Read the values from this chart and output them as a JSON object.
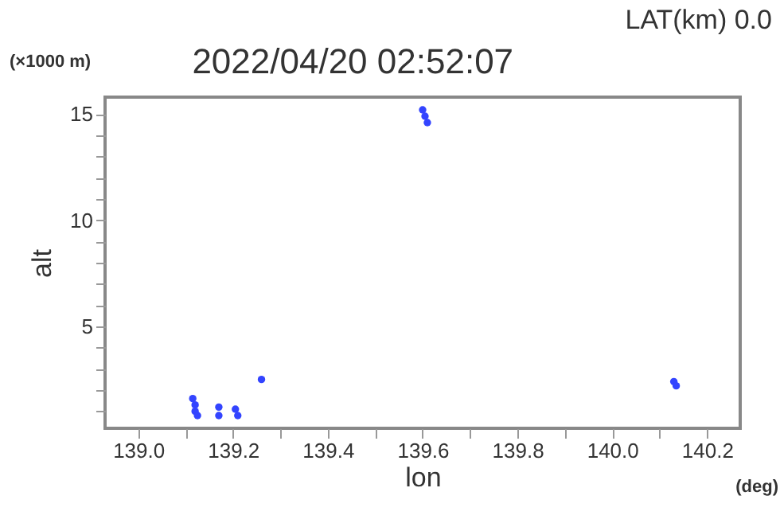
{
  "chart_data": {
    "type": "scatter",
    "title": "2022/04/20 02:52:07",
    "annotations": [
      "LAT(km) 0.0",
      "(×1000 m)",
      "(deg)"
    ],
    "xlabel": "lon",
    "ylabel": "alt",
    "xlim": [
      138.93,
      140.27
    ],
    "ylim": [
      0.2,
      15.8
    ],
    "xticks": [
      {
        "value": 139.0,
        "label": "139.0"
      },
      {
        "value": 139.1,
        "label": null
      },
      {
        "value": 139.2,
        "label": "139.2"
      },
      {
        "value": 139.3,
        "label": null
      },
      {
        "value": 139.4,
        "label": "139.4"
      },
      {
        "value": 139.5,
        "label": null
      },
      {
        "value": 139.6,
        "label": "139.6"
      },
      {
        "value": 139.7,
        "label": null
      },
      {
        "value": 139.8,
        "label": "139.8"
      },
      {
        "value": 139.9,
        "label": null
      },
      {
        "value": 140.0,
        "label": "140.0"
      },
      {
        "value": 140.1,
        "label": null
      },
      {
        "value": 140.2,
        "label": "140.2"
      }
    ],
    "yticks": [
      {
        "value": 1,
        "label": null
      },
      {
        "value": 2,
        "label": null
      },
      {
        "value": 3,
        "label": null
      },
      {
        "value": 4,
        "label": null
      },
      5,
      {
        "value": 6,
        "label": null
      },
      {
        "value": 7,
        "label": null
      },
      {
        "value": 8,
        "label": null
      },
      {
        "value": 9,
        "label": null
      },
      10,
      {
        "value": 11,
        "label": null
      },
      {
        "value": 12,
        "label": null
      },
      {
        "value": 13,
        "label": null
      },
      {
        "value": 14,
        "label": null
      },
      15
    ],
    "grid": false,
    "marker": "circle",
    "series": [
      {
        "color": "#3344ff",
        "x": [
          139.115,
          139.12,
          139.12,
          139.125,
          139.17,
          139.17,
          139.205,
          139.21,
          139.26,
          139.6,
          139.605,
          139.61,
          140.13,
          140.135
        ],
        "values": [
          1.6,
          1.3,
          1.0,
          0.8,
          1.2,
          0.8,
          1.1,
          0.8,
          2.5,
          15.2,
          14.9,
          14.6,
          2.4,
          2.2
        ]
      }
    ]
  }
}
